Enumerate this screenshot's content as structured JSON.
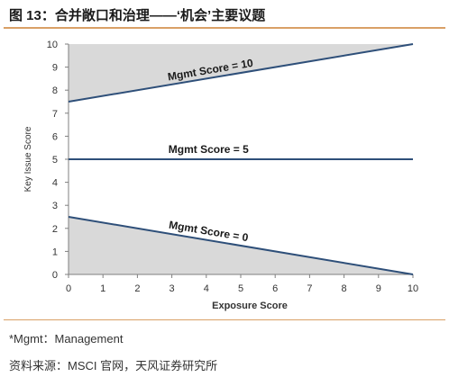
{
  "figure": {
    "title": "图 13：合并敞口和治理——‘机会’主要议题",
    "note": "*Mgmt：Management",
    "source": "资料来源：MSCI 官网，天风证券研究所"
  },
  "chart_data": {
    "type": "line",
    "title": "",
    "xlabel": "Exposure Score",
    "ylabel": "Key Issue Score",
    "xlim": [
      0,
      10
    ],
    "ylim": [
      0,
      10
    ],
    "xticks": [
      0,
      1,
      2,
      3,
      4,
      5,
      6,
      7,
      8,
      9,
      10
    ],
    "yticks": [
      0,
      1,
      2,
      3,
      4,
      5,
      6,
      7,
      8,
      9,
      10
    ],
    "grid": false,
    "legend": "none",
    "series": [
      {
        "name": "Mgmt Score = 10",
        "x": [
          0,
          10
        ],
        "y": [
          7.5,
          10
        ],
        "shade": "above"
      },
      {
        "name": "Mgmt Score = 5",
        "x": [
          0,
          10
        ],
        "y": [
          5,
          5
        ],
        "shade": "none"
      },
      {
        "name": "Mgmt Score = 0",
        "x": [
          0,
          10
        ],
        "y": [
          2.5,
          0
        ],
        "shade": "below"
      }
    ],
    "colors": {
      "line": "#2e4f79",
      "fill": "#d9d9d9",
      "axis": "#7f7f7f",
      "text": "#333333"
    }
  }
}
